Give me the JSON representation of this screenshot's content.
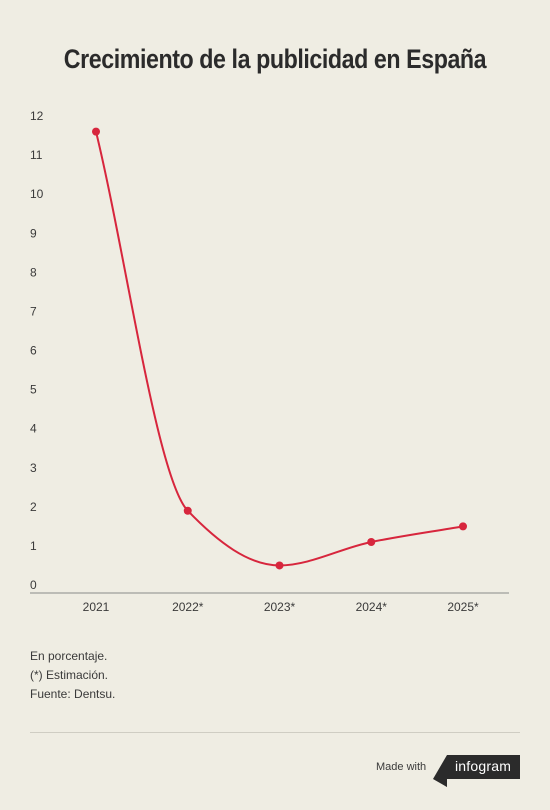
{
  "title": "Crecimiento de la publicidad en España",
  "chart_data": {
    "type": "line",
    "categories": [
      "2021",
      "2022*",
      "2023*",
      "2024*",
      "2025*"
    ],
    "values": [
      11.6,
      1.9,
      0.5,
      1.1,
      1.5
    ],
    "yticks": [
      0,
      1,
      2,
      3,
      4,
      5,
      6,
      7,
      8,
      9,
      10,
      11,
      12
    ],
    "ylim": [
      0,
      12
    ],
    "color": "#d7263d",
    "grid": false
  },
  "notes": {
    "unit": "En porcentaje.",
    "estimate": "(*) Estimación.",
    "source": "Fuente: Dentsu."
  },
  "footer": {
    "made_with": "Made with",
    "brand": "infogram"
  }
}
